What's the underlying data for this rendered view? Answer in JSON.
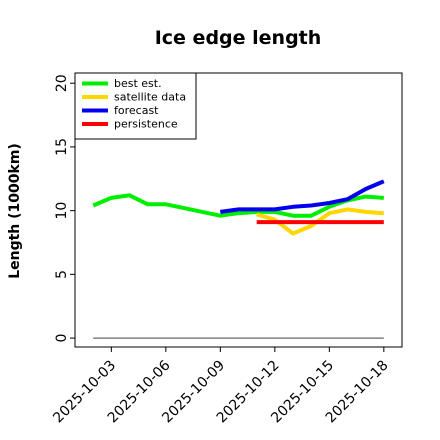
{
  "chart_data": {
    "type": "line",
    "title": "Ice edge length",
    "xlabel": "",
    "ylabel": "Length (1000km)",
    "ylim": [
      -0.7,
      20.8
    ],
    "xlim": [
      "2025-10-01",
      "2025-10-19"
    ],
    "grid": false,
    "legend_position": "top-left",
    "x_ticks": [
      "2025-10-03",
      "2025-10-06",
      "2025-10-09",
      "2025-10-12",
      "2025-10-15",
      "2025-10-18"
    ],
    "x_tick_colors": [
      "#000000",
      "#000000",
      "#228b22",
      "#000000",
      "#000000",
      "#000000"
    ],
    "y_ticks": [
      0,
      5,
      10,
      15,
      20
    ],
    "reference_line": {
      "x": [
        "2025-10-02",
        "2025-10-18"
      ],
      "y": [
        0,
        0
      ],
      "color": "#808080"
    },
    "series": [
      {
        "name": "best est.",
        "color": "#00ee00",
        "x": [
          "2025-10-02",
          "2025-10-03",
          "2025-10-04",
          "2025-10-05",
          "2025-10-06",
          "2025-10-07",
          "2025-10-08",
          "2025-10-09",
          "2025-10-10",
          "2025-10-11",
          "2025-10-12",
          "2025-10-13",
          "2025-10-14",
          "2025-10-15",
          "2025-10-16",
          "2025-10-17",
          "2025-10-18"
        ],
        "values": [
          10.4,
          11.0,
          11.2,
          10.5,
          10.5,
          10.2,
          9.9,
          9.6,
          9.8,
          9.9,
          9.9,
          9.6,
          9.6,
          10.3,
          10.8,
          11.1,
          11.0
        ]
      },
      {
        "name": "satellite data",
        "color": "#ffd700",
        "x": [
          "2025-10-11",
          "2025-10-12",
          "2025-10-13",
          "2025-10-14",
          "2025-10-15",
          "2025-10-16",
          "2025-10-17",
          "2025-10-18"
        ],
        "values": [
          9.7,
          9.3,
          8.2,
          8.8,
          9.8,
          10.1,
          9.9,
          9.8
        ]
      },
      {
        "name": "forecast",
        "color": "#0000ee",
        "x": [
          "2025-10-09",
          "2025-10-10",
          "2025-10-11",
          "2025-10-12",
          "2025-10-13",
          "2025-10-14",
          "2025-10-15",
          "2025-10-16",
          "2025-10-17",
          "2025-10-18"
        ],
        "values": [
          9.9,
          10.1,
          10.1,
          10.1,
          10.3,
          10.4,
          10.6,
          10.9,
          11.7,
          12.3
        ]
      },
      {
        "name": "persistence",
        "color": "#ff0000",
        "x": [
          "2025-10-11",
          "2025-10-18"
        ],
        "values": [
          9.1,
          9.1
        ]
      }
    ]
  }
}
